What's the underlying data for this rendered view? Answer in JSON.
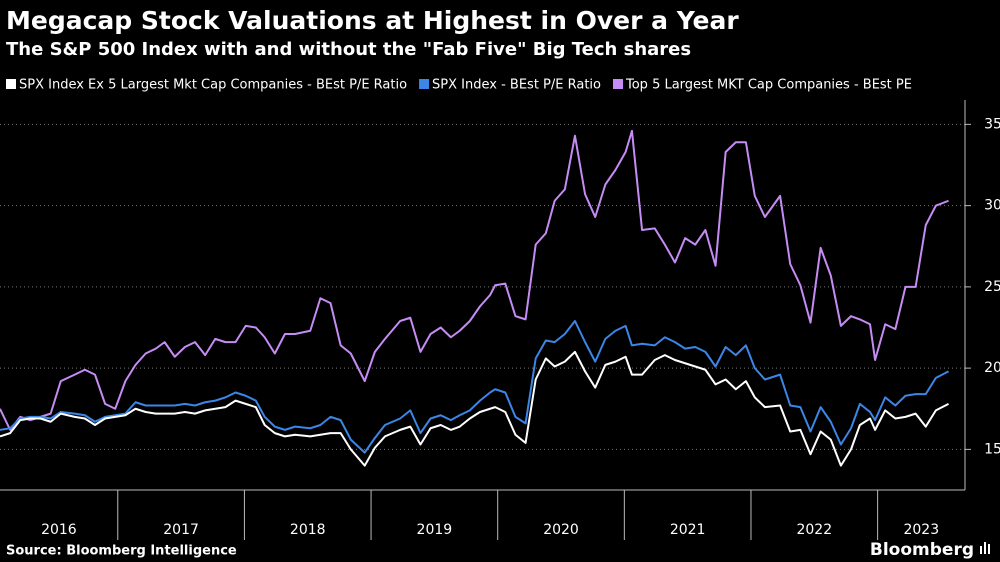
{
  "chart_data": {
    "type": "line",
    "title": "Megacap Stock Valuations at Highest in Over a Year",
    "subtitle": "The S&P 500 Index with and without the \"Fab Five\" Big Tech shares",
    "x": [
      2016.07,
      2016.15,
      2016.23,
      2016.31,
      2016.39,
      2016.47,
      2016.55,
      2016.66,
      2016.74,
      2016.82,
      2016.9,
      2016.98,
      2017.06,
      2017.14,
      2017.22,
      2017.3,
      2017.37,
      2017.45,
      2017.53,
      2017.61,
      2017.69,
      2017.77,
      2017.85,
      2017.93,
      2018.01,
      2018.09,
      2018.16,
      2018.24,
      2018.32,
      2018.4,
      2018.52,
      2018.6,
      2018.68,
      2018.76,
      2018.84,
      2018.95,
      2019.03,
      2019.11,
      2019.23,
      2019.31,
      2019.39,
      2019.47,
      2019.55,
      2019.63,
      2019.7,
      2019.78,
      2019.86,
      2019.94,
      2019.98,
      2020.06,
      2020.14,
      2020.22,
      2020.3,
      2020.38,
      2020.45,
      2020.53,
      2020.61,
      2020.69,
      2020.77,
      2020.85,
      2020.93,
      2021.01,
      2021.06,
      2021.14,
      2021.24,
      2021.32,
      2021.4,
      2021.48,
      2021.56,
      2021.64,
      2021.72,
      2021.8,
      2021.88,
      2021.96,
      2022.03,
      2022.11,
      2022.23,
      2022.31,
      2022.39,
      2022.47,
      2022.55,
      2022.63,
      2022.71,
      2022.79,
      2022.86,
      2022.94,
      2022.98,
      2023.06,
      2023.14,
      2023.22,
      2023.3,
      2023.38,
      2023.46,
      2023.56
    ],
    "series": [
      {
        "name": "SPX Index Ex 5 Largest Mkt Cap Companies - BEst P/E Ratio",
        "color": "#ffffff",
        "values": [
          15.8,
          16.0,
          16.8,
          16.9,
          16.9,
          16.7,
          17.2,
          17.0,
          16.9,
          16.5,
          16.9,
          17.0,
          17.1,
          17.5,
          17.3,
          17.2,
          17.2,
          17.2,
          17.3,
          17.2,
          17.4,
          17.5,
          17.6,
          18.0,
          17.8,
          17.6,
          16.5,
          16.0,
          15.8,
          15.9,
          15.8,
          15.9,
          16.0,
          16.0,
          15.0,
          14.0,
          15.1,
          15.8,
          16.2,
          16.4,
          15.3,
          16.3,
          16.5,
          16.2,
          16.4,
          16.9,
          17.3,
          17.5,
          17.6,
          17.3,
          15.9,
          15.4,
          19.3,
          20.6,
          20.1,
          20.4,
          21.0,
          19.8,
          18.8,
          20.2,
          20.4,
          20.7,
          19.6,
          19.6,
          20.5,
          20.8,
          20.5,
          20.3,
          20.1,
          19.9,
          19.0,
          19.3,
          18.7,
          19.2,
          18.2,
          17.6,
          17.7,
          16.1,
          16.2,
          14.7,
          16.1,
          15.6,
          14.0,
          15.0,
          16.5,
          16.9,
          16.2,
          17.4,
          16.9,
          17.0,
          17.2,
          16.4,
          17.4,
          17.8
        ]
      },
      {
        "name": "SPX Index - BEst P/E Ratio",
        "color": "#3b86e6",
        "values": [
          16.2,
          16.3,
          16.9,
          17.0,
          17.0,
          16.9,
          17.3,
          17.2,
          17.1,
          16.7,
          17.0,
          17.1,
          17.2,
          17.9,
          17.7,
          17.7,
          17.7,
          17.7,
          17.8,
          17.7,
          17.9,
          18.0,
          18.2,
          18.5,
          18.3,
          18.0,
          17.0,
          16.4,
          16.2,
          16.4,
          16.3,
          16.5,
          17.0,
          16.8,
          15.6,
          14.8,
          15.7,
          16.5,
          16.9,
          17.4,
          16.0,
          16.9,
          17.1,
          16.8,
          17.1,
          17.4,
          18.0,
          18.5,
          18.7,
          18.5,
          17.0,
          16.6,
          20.6,
          21.7,
          21.6,
          22.1,
          22.9,
          21.6,
          20.4,
          21.8,
          22.3,
          22.6,
          21.4,
          21.5,
          21.4,
          21.9,
          21.6,
          21.2,
          21.3,
          21.0,
          20.1,
          21.3,
          20.8,
          21.4,
          20.0,
          19.3,
          19.6,
          17.7,
          17.6,
          16.1,
          17.6,
          16.7,
          15.3,
          16.3,
          17.8,
          17.3,
          16.8,
          18.2,
          17.7,
          18.3,
          18.4,
          18.4,
          19.4,
          19.8
        ]
      },
      {
        "name": "Top 5 Largest MKT Cap Companies - BEst PE",
        "color": "#c68cf5",
        "values": [
          17.5,
          16.2,
          17.0,
          16.8,
          17.0,
          17.2,
          19.2,
          19.6,
          19.9,
          19.6,
          17.8,
          17.5,
          19.2,
          20.2,
          20.9,
          21.2,
          21.6,
          20.7,
          21.3,
          21.6,
          20.8,
          21.8,
          21.6,
          21.6,
          22.6,
          22.5,
          21.9,
          20.9,
          22.1,
          22.1,
          22.3,
          24.3,
          24.0,
          21.4,
          20.9,
          19.2,
          21.0,
          21.8,
          22.9,
          23.1,
          21.0,
          22.1,
          22.5,
          21.9,
          22.3,
          22.9,
          23.8,
          24.5,
          25.1,
          25.2,
          23.2,
          23.0,
          27.6,
          28.3,
          30.3,
          31.0,
          34.3,
          30.7,
          29.3,
          31.3,
          32.2,
          33.3,
          34.6,
          28.5,
          28.6,
          27.6,
          26.5,
          28.0,
          27.6,
          28.5,
          26.3,
          33.3,
          33.9,
          33.9,
          30.6,
          29.3,
          30.6,
          26.4,
          25.1,
          22.8,
          27.4,
          25.7,
          22.6,
          23.2,
          23.0,
          22.7,
          20.5,
          22.7,
          22.4,
          25.0,
          25.0,
          28.8,
          30.0,
          30.3
        ]
      }
    ],
    "xlim": [
      2016.07,
      2023.69
    ],
    "xticks": [
      {
        "value": 2016.5,
        "label": "2016"
      },
      {
        "value": 2017.5,
        "label": "2017"
      },
      {
        "value": 2018.5,
        "label": "2018"
      },
      {
        "value": 2019.5,
        "label": "2019"
      },
      {
        "value": 2020.5,
        "label": "2020"
      },
      {
        "value": 2021.5,
        "label": "2021"
      },
      {
        "value": 2022.5,
        "label": "2022"
      },
      {
        "value": 2023.5,
        "label": "2023"
      }
    ],
    "ylim": [
      12.5,
      36.5
    ],
    "yticks": [
      15,
      20,
      25,
      30,
      35
    ],
    "grid": true
  },
  "footer": {
    "source": "Source: Bloomberg Intelligence",
    "brand": "Bloomberg"
  }
}
